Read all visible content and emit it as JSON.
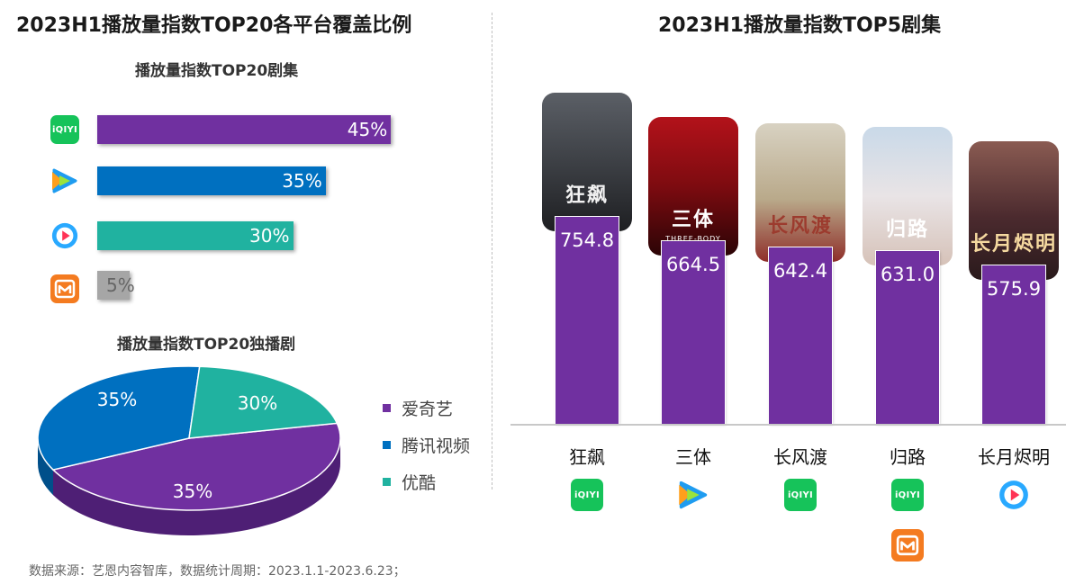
{
  "left_panel": {
    "title": "2023H1播放量指数TOP20各平台覆盖比例",
    "bar_subtitle": "播放量指数TOP20剧集",
    "pie_subtitle": "播放量指数TOP20独播剧"
  },
  "right_panel": {
    "title": "2023H1播放量指数TOP5剧集"
  },
  "source_note": "数据来源：艺恩内容智库，数据统计周期：2023.1.1-2023.6.23；",
  "logos": {
    "iqiyi_text": "iQIYI",
    "iqiyi_icon": "iqiyi-logo",
    "tencent_icon": "tencent-video-logo",
    "youku_icon": "youku-logo",
    "mango_icon": "mango-tv-logo"
  },
  "colors": {
    "iqiyi": "#7030a0",
    "tencent": "#0070c0",
    "youku": "#20b2a0",
    "mango": "#a6a6a6"
  },
  "chart_data": [
    {
      "type": "bar",
      "orientation": "horizontal",
      "title": "播放量指数TOP20剧集",
      "categories": [
        "iqiyi",
        "tencent",
        "youku",
        "mango"
      ],
      "values": [
        45,
        35,
        30,
        5
      ],
      "value_labels": [
        "45%",
        "35%",
        "30%",
        "5%"
      ],
      "xlim": [
        0,
        100
      ]
    },
    {
      "type": "pie",
      "title": "播放量指数TOP20独播剧",
      "legend": [
        "爱奇艺",
        "腾讯视频",
        "优酷"
      ],
      "legend_position": "right",
      "values": [
        35,
        35,
        30
      ],
      "value_labels": [
        "35%",
        "35%",
        "30%"
      ]
    },
    {
      "type": "bar",
      "orientation": "vertical",
      "title": "2023H1播放量指数TOP5剧集",
      "categories": [
        "狂飙",
        "三体",
        "长风渡",
        "归路",
        "长月烬明"
      ],
      "values": [
        754.8,
        664.5,
        642.4,
        631.0,
        575.9
      ],
      "value_labels": [
        "754.8",
        "664.5",
        "642.4",
        "631.0",
        "575.9"
      ],
      "platforms": [
        [
          "iqiyi"
        ],
        [
          "tencent"
        ],
        [
          "iqiyi"
        ],
        [
          "iqiyi",
          "mango"
        ],
        [
          "youku"
        ]
      ],
      "poster_texts": [
        "狂飙",
        "三体",
        "长风渡",
        "归路",
        "长月烬明"
      ],
      "poster_subtext": "THREE-BODY"
    }
  ]
}
